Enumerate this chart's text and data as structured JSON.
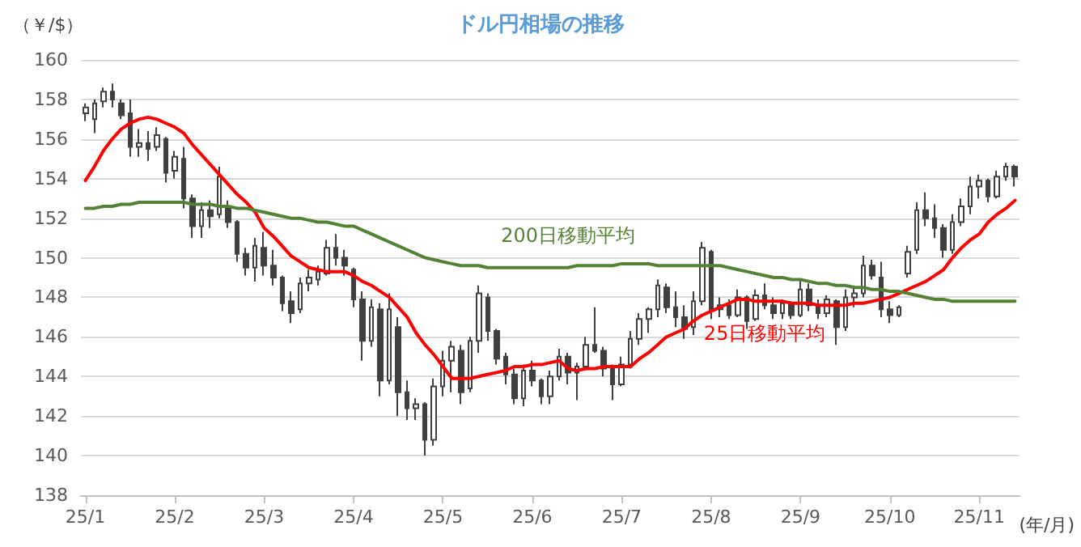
{
  "chart_data": {
    "type": "candlestick",
    "title": "ドル円相場の推移",
    "ylabel": "（￥/$）",
    "xlabel": "(年/月)",
    "color": "#404040",
    "categories": [
      "25/1",
      null,
      null,
      null,
      null,
      null,
      null,
      null,
      null,
      null,
      "25/2",
      null,
      null,
      null,
      null,
      null,
      null,
      null,
      null,
      null,
      "25/3",
      null,
      null,
      null,
      null,
      null,
      null,
      null,
      null,
      null,
      "25/4",
      null,
      null,
      null,
      null,
      null,
      null,
      null,
      null,
      null,
      "25/5",
      null,
      null,
      null,
      null,
      null,
      null,
      null,
      null,
      null,
      "25/6",
      null,
      null,
      null,
      null,
      null,
      null,
      null,
      null,
      null,
      "25/7",
      null,
      null,
      null,
      null,
      null,
      null,
      null,
      null,
      null,
      "25/8",
      null,
      null,
      null,
      null,
      null,
      null,
      null,
      null,
      null,
      "25/9",
      null,
      null,
      null,
      null,
      null,
      null,
      null,
      null,
      null,
      "25/10",
      null,
      null,
      null,
      null,
      null,
      null,
      null,
      null,
      null,
      "25/11",
      null,
      null,
      null,
      null
    ],
    "ohlc": [
      [
        157.3,
        157.8,
        156.9,
        157.6
      ],
      [
        157.0,
        158.0,
        156.3,
        157.8
      ],
      [
        157.9,
        158.6,
        157.6,
        158.4
      ],
      [
        158.4,
        158.8,
        157.6,
        158.0
      ],
      [
        157.8,
        158.0,
        157.0,
        157.2
      ],
      [
        157.3,
        158.0,
        155.1,
        155.6
      ],
      [
        155.6,
        156.5,
        155.1,
        155.8
      ],
      [
        155.8,
        156.4,
        154.9,
        155.5
      ],
      [
        155.6,
        156.6,
        155.4,
        156.2
      ],
      [
        156.0,
        156.1,
        153.8,
        154.3
      ],
      [
        154.4,
        155.4,
        154.0,
        155.1
      ],
      [
        155.0,
        155.6,
        152.5,
        153.0
      ],
      [
        153.0,
        153.2,
        151.0,
        151.6
      ],
      [
        151.6,
        152.8,
        151.0,
        152.4
      ],
      [
        152.4,
        152.9,
        151.5,
        152.1
      ],
      [
        152.2,
        154.6,
        152.0,
        154.1
      ],
      [
        152.6,
        152.9,
        151.5,
        151.8
      ],
      [
        151.8,
        151.9,
        149.8,
        150.2
      ],
      [
        150.2,
        150.5,
        149.1,
        149.5
      ],
      [
        149.5,
        151.0,
        148.8,
        150.6
      ],
      [
        150.5,
        151.3,
        149.1,
        149.6
      ],
      [
        149.6,
        150.4,
        148.6,
        149.0
      ],
      [
        149.0,
        149.1,
        147.3,
        147.7
      ],
      [
        147.8,
        148.3,
        146.7,
        147.2
      ],
      [
        147.4,
        149.0,
        147.2,
        148.7
      ],
      [
        148.7,
        149.4,
        148.3,
        149.0
      ],
      [
        148.9,
        149.6,
        148.6,
        149.3
      ],
      [
        149.2,
        150.9,
        149.1,
        150.5
      ],
      [
        150.5,
        151.2,
        149.6,
        150.0
      ],
      [
        150.0,
        150.4,
        149.1,
        149.6
      ],
      [
        149.4,
        149.5,
        147.5,
        147.9
      ],
      [
        147.9,
        148.3,
        144.8,
        145.8
      ],
      [
        145.8,
        147.9,
        145.5,
        147.5
      ],
      [
        147.4,
        147.7,
        143.0,
        143.8
      ],
      [
        143.8,
        148.2,
        143.6,
        147.4
      ],
      [
        146.5,
        147.0,
        142.0,
        143.2
      ],
      [
        143.2,
        143.8,
        141.8,
        142.4
      ],
      [
        142.4,
        142.9,
        141.8,
        142.6
      ],
      [
        142.6,
        142.7,
        140.0,
        140.8
      ],
      [
        140.8,
        143.9,
        140.5,
        143.5
      ],
      [
        143.5,
        145.3,
        143.0,
        144.8
      ],
      [
        144.8,
        145.8,
        143.2,
        145.5
      ],
      [
        145.3,
        145.6,
        142.6,
        143.2
      ],
      [
        143.4,
        146.0,
        143.2,
        145.8
      ],
      [
        145.8,
        148.6,
        145.2,
        148.2
      ],
      [
        148.0,
        148.2,
        145.8,
        146.3
      ],
      [
        146.3,
        146.4,
        144.6,
        144.9
      ],
      [
        145.0,
        145.2,
        143.6,
        144.1
      ],
      [
        144.1,
        144.4,
        142.6,
        142.9
      ],
      [
        142.9,
        144.6,
        142.5,
        144.3
      ],
      [
        144.3,
        144.8,
        143.5,
        143.8
      ],
      [
        143.8,
        143.9,
        142.6,
        143.0
      ],
      [
        143.0,
        144.3,
        142.6,
        144.0
      ],
      [
        144.0,
        145.4,
        143.8,
        145.0
      ],
      [
        145.0,
        145.2,
        143.6,
        144.2
      ],
      [
        144.2,
        144.7,
        142.8,
        144.5
      ],
      [
        144.5,
        146.0,
        144.3,
        145.6
      ],
      [
        145.6,
        147.5,
        145.2,
        145.3
      ],
      [
        145.3,
        145.5,
        144.0,
        144.4
      ],
      [
        144.4,
        144.6,
        142.8,
        143.6
      ],
      [
        143.6,
        145.0,
        143.5,
        144.6
      ],
      [
        144.6,
        146.3,
        144.4,
        145.9
      ],
      [
        145.9,
        147.2,
        145.6,
        146.9
      ],
      [
        146.9,
        147.5,
        146.2,
        147.4
      ],
      [
        147.4,
        148.9,
        147.0,
        148.6
      ],
      [
        148.5,
        148.7,
        147.2,
        147.5
      ],
      [
        147.5,
        148.3,
        146.5,
        147.0
      ],
      [
        147.0,
        147.6,
        145.9,
        146.4
      ],
      [
        146.5,
        148.3,
        146.1,
        147.8
      ],
      [
        147.8,
        150.8,
        147.6,
        150.5
      ],
      [
        150.3,
        150.4,
        146.9,
        147.4
      ],
      [
        147.4,
        148.0,
        147.0,
        147.6
      ],
      [
        147.6,
        147.9,
        146.9,
        147.1
      ],
      [
        147.1,
        148.4,
        147.0,
        148.0
      ],
      [
        148.0,
        148.1,
        146.4,
        146.8
      ],
      [
        146.9,
        148.4,
        146.8,
        148.1
      ],
      [
        148.1,
        148.7,
        147.4,
        147.6
      ],
      [
        147.6,
        148.0,
        146.9,
        147.2
      ],
      [
        147.2,
        147.9,
        146.9,
        147.7
      ],
      [
        147.7,
        147.8,
        146.9,
        147.1
      ],
      [
        147.1,
        148.9,
        147.0,
        148.4
      ],
      [
        148.4,
        148.7,
        147.3,
        147.6
      ],
      [
        147.6,
        147.9,
        146.9,
        147.2
      ],
      [
        147.2,
        148.1,
        147.0,
        147.9
      ],
      [
        147.8,
        147.9,
        145.6,
        146.5
      ],
      [
        146.5,
        148.4,
        146.3,
        148.0
      ],
      [
        148.0,
        148.6,
        147.5,
        148.2
      ],
      [
        148.2,
        150.1,
        148.0,
        149.6
      ],
      [
        149.6,
        149.9,
        148.9,
        149.1
      ],
      [
        149.0,
        149.8,
        147.0,
        147.4
      ],
      [
        147.4,
        147.8,
        146.7,
        147.1
      ],
      [
        147.1,
        147.6,
        147.0,
        147.5
      ],
      [
        149.2,
        150.6,
        149.0,
        150.3
      ],
      [
        150.4,
        152.8,
        150.2,
        152.4
      ],
      [
        152.4,
        153.3,
        151.6,
        152.0
      ],
      [
        152.0,
        152.7,
        151.0,
        151.5
      ],
      [
        151.5,
        151.7,
        150.0,
        150.4
      ],
      [
        150.4,
        152.2,
        150.2,
        151.8
      ],
      [
        151.8,
        153.0,
        151.6,
        152.6
      ],
      [
        152.6,
        154.1,
        152.2,
        153.6
      ],
      [
        153.6,
        154.2,
        153.0,
        153.9
      ],
      [
        153.9,
        154.0,
        152.8,
        153.1
      ],
      [
        153.1,
        154.4,
        153.0,
        154.1
      ],
      [
        154.1,
        154.8,
        153.9,
        154.6
      ],
      [
        154.6,
        154.7,
        153.6,
        154.1
      ]
    ],
    "series": [
      {
        "type": "line",
        "name": "25日移動平均",
        "color": "#ff0000",
        "values": [
          153.9,
          154.6,
          155.4,
          156.0,
          156.5,
          156.8,
          157.0,
          157.1,
          157.0,
          156.8,
          156.6,
          156.3,
          155.7,
          155.2,
          154.7,
          154.2,
          153.7,
          153.2,
          152.8,
          152.3,
          151.5,
          151.1,
          150.6,
          150.1,
          149.8,
          149.5,
          149.4,
          149.3,
          149.3,
          149.3,
          149.1,
          148.8,
          148.6,
          148.3,
          148.0,
          147.5,
          147.0,
          146.2,
          145.6,
          145.1,
          144.5,
          143.9,
          143.9,
          143.9,
          144.0,
          144.1,
          144.2,
          144.3,
          144.5,
          144.5,
          144.6,
          144.6,
          144.7,
          144.8,
          144.4,
          144.3,
          144.4,
          144.4,
          144.5,
          144.5,
          144.5,
          144.5,
          144.9,
          145.2,
          145.6,
          146.0,
          146.2,
          146.4,
          146.8,
          147.1,
          147.3,
          147.5,
          147.7,
          147.9,
          147.9,
          147.8,
          147.8,
          147.8,
          147.8,
          147.7,
          147.7,
          147.7,
          147.6,
          147.6,
          147.6,
          147.6,
          147.7,
          147.7,
          147.8,
          147.9,
          148.0,
          148.2,
          148.4,
          148.6,
          148.8,
          149.1,
          149.4,
          150.0,
          150.5,
          150.9,
          151.2,
          151.8,
          152.2,
          152.5,
          152.9
        ]
      },
      {
        "type": "line",
        "name": "200日移動平均",
        "color": "#548235",
        "values": [
          152.5,
          152.5,
          152.6,
          152.6,
          152.7,
          152.7,
          152.8,
          152.8,
          152.8,
          152.8,
          152.8,
          152.8,
          152.7,
          152.7,
          152.7,
          152.6,
          152.6,
          152.5,
          152.5,
          152.4,
          152.3,
          152.2,
          152.1,
          152.0,
          152.0,
          151.9,
          151.8,
          151.8,
          151.7,
          151.6,
          151.6,
          151.4,
          151.2,
          151.0,
          150.8,
          150.6,
          150.4,
          150.2,
          150.0,
          149.9,
          149.8,
          149.7,
          149.6,
          149.6,
          149.6,
          149.5,
          149.5,
          149.5,
          149.5,
          149.5,
          149.5,
          149.5,
          149.5,
          149.5,
          149.5,
          149.6,
          149.6,
          149.6,
          149.6,
          149.6,
          149.7,
          149.7,
          149.7,
          149.7,
          149.6,
          149.6,
          149.6,
          149.6,
          149.6,
          149.6,
          149.6,
          149.6,
          149.5,
          149.4,
          149.3,
          149.2,
          149.1,
          149.0,
          149.0,
          148.9,
          148.9,
          148.8,
          148.7,
          148.7,
          148.6,
          148.6,
          148.5,
          148.5,
          148.4,
          148.4,
          148.3,
          148.3,
          148.2,
          148.1,
          148.0,
          147.9,
          147.9,
          147.8,
          147.8,
          147.8,
          147.8,
          147.8,
          147.8,
          147.8,
          147.8
        ]
      }
    ],
    "ylim": [
      138,
      160
    ],
    "yticks": [
      138,
      140,
      142,
      144,
      146,
      148,
      150,
      152,
      154,
      156,
      158,
      160
    ],
    "grid": "y",
    "marker": "none"
  }
}
